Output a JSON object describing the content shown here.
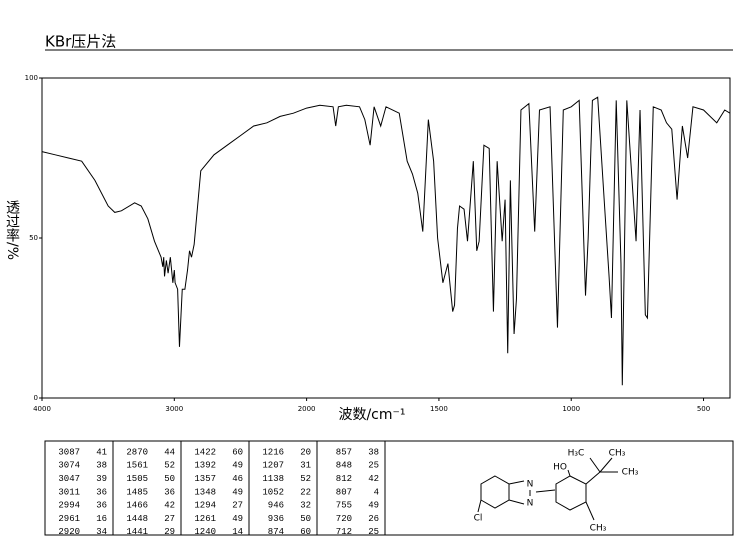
{
  "header": {
    "title": "KBr压片法"
  },
  "chart_data": {
    "type": "line",
    "ylabel": "透过率/%",
    "xlabel": "波数/cm⁻¹",
    "xlim": [
      4000,
      400
    ],
    "xscale_break": 2000,
    "xticks": [
      4000,
      3000,
      2000,
      1500,
      1000,
      500
    ],
    "ylim": [
      0,
      100
    ],
    "yticks": [
      0,
      50,
      100
    ],
    "x": [
      4000,
      3900,
      3800,
      3700,
      3600,
      3500,
      3450,
      3400,
      3300,
      3250,
      3200,
      3150,
      3100,
      3087,
      3080,
      3074,
      3060,
      3047,
      3030,
      3011,
      3000,
      2994,
      2975,
      2961,
      2940,
      2920,
      2900,
      2885,
      2870,
      2850,
      2800,
      2700,
      2600,
      2500,
      2400,
      2300,
      2200,
      2100,
      2000,
      1950,
      1900,
      1890,
      1880,
      1850,
      1800,
      1780,
      1760,
      1745,
      1720,
      1700,
      1650,
      1620,
      1600,
      1580,
      1561,
      1540,
      1520,
      1505,
      1485,
      1466,
      1448,
      1441,
      1430,
      1422,
      1405,
      1392,
      1370,
      1357,
      1348,
      1330,
      1310,
      1294,
      1280,
      1261,
      1250,
      1240,
      1230,
      1216,
      1207,
      1190,
      1160,
      1138,
      1120,
      1080,
      1052,
      1030,
      1000,
      970,
      946,
      936,
      920,
      900,
      874,
      857,
      848,
      830,
      812,
      807,
      790,
      755,
      740,
      720,
      712,
      690,
      660,
      640,
      620,
      600,
      580,
      560,
      540,
      500,
      450,
      420,
      400
    ],
    "series": [
      {
        "color": "#000000",
        "values": [
          77,
          76,
          75,
          74,
          68,
          60,
          58,
          58.5,
          61,
          60,
          56,
          49,
          44,
          41,
          44,
          38,
          43,
          39,
          44,
          36,
          40,
          36,
          34,
          16,
          34,
          34,
          40,
          46,
          44,
          48,
          71,
          76,
          79,
          82,
          85,
          86,
          88,
          89,
          90.6,
          91.5,
          91,
          85,
          91,
          91.5,
          91,
          87,
          79,
          91,
          85,
          91,
          89,
          74,
          70,
          64,
          52,
          87,
          74,
          50,
          36,
          42,
          27,
          29,
          53,
          60,
          59,
          49,
          74,
          46,
          49,
          79,
          78,
          27,
          74,
          49,
          62,
          14,
          68,
          20,
          31,
          90,
          92,
          52,
          90,
          91,
          22,
          90,
          91,
          93,
          32,
          50,
          93,
          94,
          60,
          38,
          25,
          93,
          42,
          4,
          93,
          49,
          90,
          26,
          25,
          91,
          90,
          86,
          84,
          62,
          85,
          75,
          91,
          90,
          86,
          90,
          89
        ]
      }
    ]
  },
  "peak_table": [
    [
      [
        3087,
        41
      ],
      [
        3074,
        38
      ],
      [
        3047,
        39
      ],
      [
        3011,
        36
      ],
      [
        2994,
        36
      ],
      [
        2961,
        16
      ],
      [
        2920,
        34
      ]
    ],
    [
      [
        2870,
        44
      ],
      [
        1561,
        52
      ],
      [
        1505,
        50
      ],
      [
        1485,
        36
      ],
      [
        1466,
        42
      ],
      [
        1448,
        27
      ],
      [
        1441,
        29
      ]
    ],
    [
      [
        1422,
        60
      ],
      [
        1392,
        49
      ],
      [
        1357,
        46
      ],
      [
        1348,
        49
      ],
      [
        1294,
        27
      ],
      [
        1261,
        49
      ],
      [
        1240,
        14
      ]
    ],
    [
      [
        1216,
        20
      ],
      [
        1207,
        31
      ],
      [
        1138,
        52
      ],
      [
        1052,
        22
      ],
      [
        946,
        32
      ],
      [
        936,
        50
      ],
      [
        874,
        60
      ]
    ],
    [
      [
        857,
        38
      ],
      [
        848,
        25
      ],
      [
        812,
        42
      ],
      [
        807,
        4
      ],
      [
        755,
        49
      ],
      [
        720,
        26
      ],
      [
        712,
        25
      ]
    ]
  ],
  "structure": {
    "labels": [
      "H₃C",
      "CH₃",
      "HO",
      "CH₃",
      "N",
      "N",
      "Cl",
      "CH₃"
    ]
  }
}
